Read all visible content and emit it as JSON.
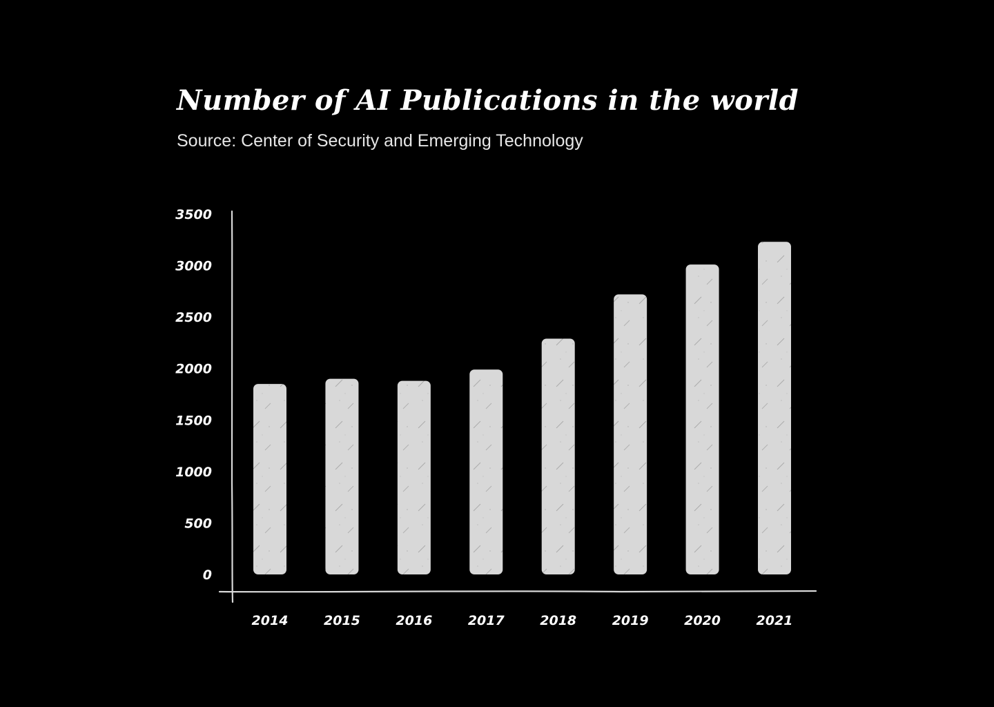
{
  "title": "Number of AI Publications in the world",
  "subtitle": "Source: Center of Security and Emerging Technology",
  "colors": {
    "background": "#000000",
    "bar": "#d9d9d9",
    "text": "#ffffff",
    "axis": "#d9d9d9"
  },
  "chart_data": {
    "type": "bar",
    "title": "Number of AI Publications in the world",
    "subtitle": "Source: Center of Security and Emerging Technology",
    "xlabel": "",
    "ylabel": "",
    "categories": [
      "2014",
      "2015",
      "2016",
      "2017",
      "2018",
      "2019",
      "2020",
      "2021"
    ],
    "values": [
      1850,
      1900,
      1880,
      1990,
      2290,
      2720,
      3010,
      3230
    ],
    "ylim": [
      0,
      3500
    ],
    "yticks": [
      0,
      500,
      1000,
      1500,
      2000,
      2500,
      3000,
      3500
    ],
    "grid": false,
    "legend": "none"
  }
}
